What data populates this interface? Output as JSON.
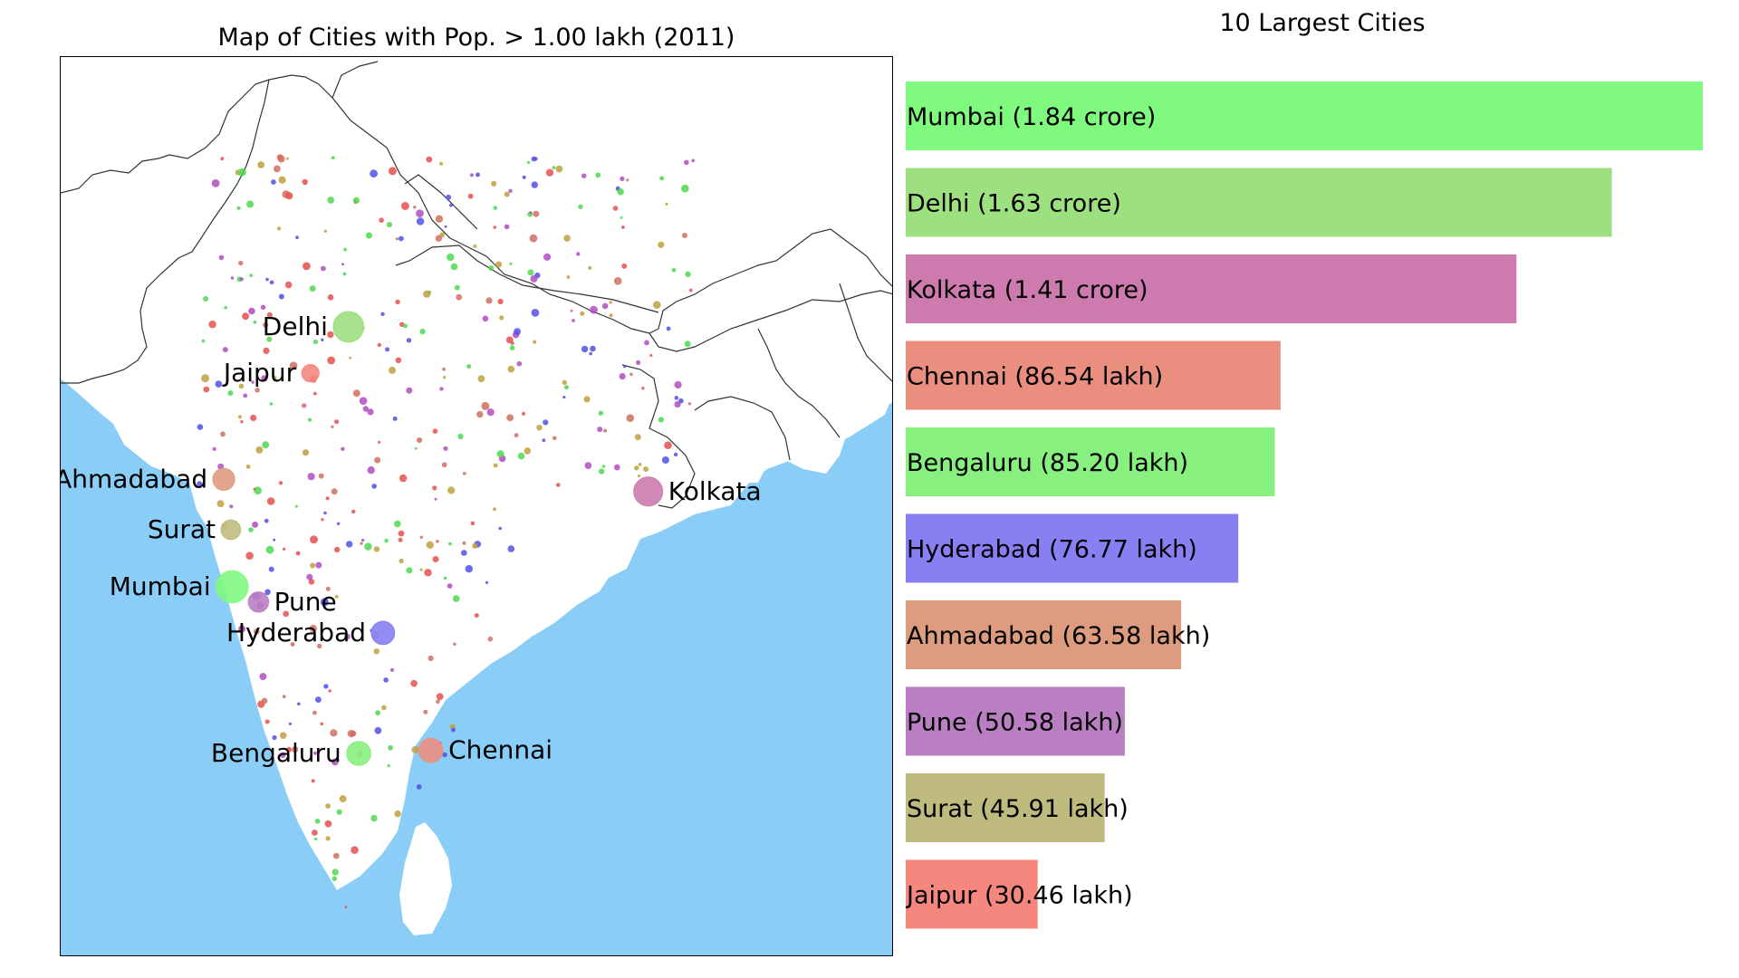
{
  "chart_data": [
    {
      "type": "scatter",
      "title": "Map of Cities with Pop. > 1.00 lakh (2011)",
      "xlabel": "",
      "ylabel": "",
      "grid": false,
      "legend": "none",
      "colors": {
        "sea": "#8ACEF8",
        "land": "#FFFFFF",
        "border": "#333333"
      },
      "xlim": [
        66.5,
        97.5
      ],
      "ylim": [
        5.5,
        38.5
      ],
      "labeled_cities": [
        {
          "name": "Mumbai",
          "lon": 72.88,
          "lat": 19.08,
          "population": 18400000,
          "color": "#7FFA7F"
        },
        {
          "name": "Delhi",
          "lon": 77.21,
          "lat": 28.61,
          "population": 16300000,
          "color": "#9DE07F"
        },
        {
          "name": "Kolkata",
          "lon": 88.36,
          "lat": 22.57,
          "population": 14100000,
          "color": "#CD7BAF"
        },
        {
          "name": "Chennai",
          "lon": 80.27,
          "lat": 13.08,
          "population": 8654000,
          "color": "#EA8F7F"
        },
        {
          "name": "Bengaluru",
          "lon": 77.59,
          "lat": 12.97,
          "population": 8520000,
          "color": "#88F07F"
        },
        {
          "name": "Hyderabad",
          "lon": 78.49,
          "lat": 17.39,
          "population": 7677000,
          "color": "#877FF2"
        },
        {
          "name": "Ahmadabad",
          "lon": 72.57,
          "lat": 23.02,
          "population": 6358000,
          "color": "#DE9C7F"
        },
        {
          "name": "Pune",
          "lon": 73.86,
          "lat": 18.52,
          "population": 5058000,
          "color": "#BA7FC2"
        },
        {
          "name": "Surat",
          "lon": 72.83,
          "lat": 21.17,
          "population": 4591000,
          "color": "#BFBB7F"
        },
        {
          "name": "Jaipur",
          "lon": 75.79,
          "lat": 26.91,
          "population": 3046000,
          "color": "#F5877F"
        }
      ]
    },
    {
      "type": "bar",
      "orientation": "horizontal",
      "title": "10 Largest Cities",
      "categories": [
        "Mumbai",
        "Delhi",
        "Kolkata",
        "Chennai",
        "Bengaluru",
        "Hyderabad",
        "Ahmadabad",
        "Pune",
        "Surat",
        "Jaipur"
      ],
      "labels": [
        "Mumbai (1.84 crore)",
        "Delhi (1.63 crore)",
        "Kolkata (1.41 crore)",
        "Chennai (86.54 lakh)",
        "Bengaluru (85.20 lakh)",
        "Hyderabad (76.77 lakh)",
        "Ahmadabad (63.58 lakh)",
        "Pune (50.58 lakh)",
        "Surat (45.91 lakh)",
        "Jaipur (30.46 lakh)"
      ],
      "values_lakh": [
        184.0,
        163.0,
        141.0,
        86.54,
        85.2,
        76.77,
        63.58,
        50.58,
        45.91,
        30.46
      ],
      "colors": [
        "#7FFA7F",
        "#9DE07F",
        "#CD7BAF",
        "#EA8F7F",
        "#88F07F",
        "#877FF2",
        "#DE9C7F",
        "#BA7FC2",
        "#BFBB7F",
        "#F5877F"
      ],
      "xlim": [
        0,
        184
      ],
      "axes_visible": false
    }
  ]
}
